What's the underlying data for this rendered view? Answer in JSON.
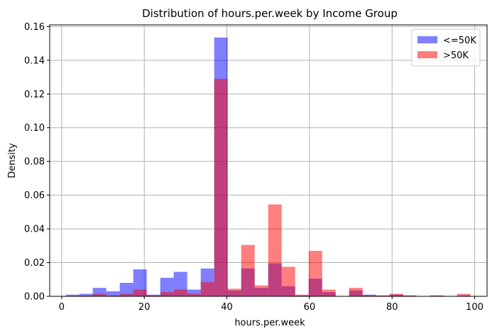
{
  "chart_data": {
    "type": "bar",
    "title": "Distribution of hours.per.week by Income Group",
    "xlabel": "hours.per.week",
    "ylabel": "Density",
    "xlim": [
      -2.9,
      103.0
    ],
    "ylim": [
      0.0,
      0.161
    ],
    "xticks": [
      0,
      20,
      40,
      60,
      80,
      100
    ],
    "yticks": [
      0.0,
      0.02,
      0.04,
      0.06,
      0.08,
      0.1,
      0.12,
      0.14,
      0.16
    ],
    "xtick_labels": [
      "0",
      "20",
      "40",
      "60",
      "80",
      "100"
    ],
    "ytick_labels": [
      "0.00",
      "0.02",
      "0.04",
      "0.06",
      "0.08",
      "0.10",
      "0.12",
      "0.14",
      "0.16"
    ],
    "grid": true,
    "legend_position": "top-right",
    "bin_edges": [
      1.0,
      4.27,
      7.53,
      10.8,
      14.07,
      17.33,
      20.6,
      23.87,
      27.13,
      30.4,
      33.67,
      36.93,
      40.2,
      43.47,
      46.73,
      50.0,
      53.27,
      56.53,
      59.8,
      63.07,
      66.33,
      69.6,
      72.87,
      76.13,
      79.4,
      82.67,
      85.93,
      89.2,
      92.47,
      95.73,
      99.0
    ],
    "series": [
      {
        "name": "<=50K",
        "color": "#0000ff",
        "alpha": 0.5,
        "values": [
          0.001,
          0.0015,
          0.005,
          0.003,
          0.008,
          0.016,
          0.001,
          0.011,
          0.0145,
          0.004,
          0.0165,
          0.1535,
          0.0035,
          0.0165,
          0.005,
          0.0195,
          0.006,
          0.0005,
          0.0105,
          0.0025,
          0.0002,
          0.0035,
          0.001,
          0.0005,
          0.001,
          0.0005,
          0.0001,
          0.0005,
          0.0001,
          0.0005
        ]
      },
      {
        "name": ">50K",
        "color": "#ff0000",
        "alpha": 0.5,
        "values": [
          0.0002,
          0.0005,
          0.0015,
          0.0005,
          0.0015,
          0.004,
          0.0005,
          0.0025,
          0.004,
          0.0015,
          0.0085,
          0.129,
          0.0045,
          0.0305,
          0.0065,
          0.0545,
          0.0175,
          0.001,
          0.027,
          0.004,
          0.0002,
          0.005,
          0.0005,
          0.0005,
          0.0015,
          0.0005,
          0.0001,
          0.0005,
          0.0002,
          0.0015
        ]
      }
    ]
  }
}
